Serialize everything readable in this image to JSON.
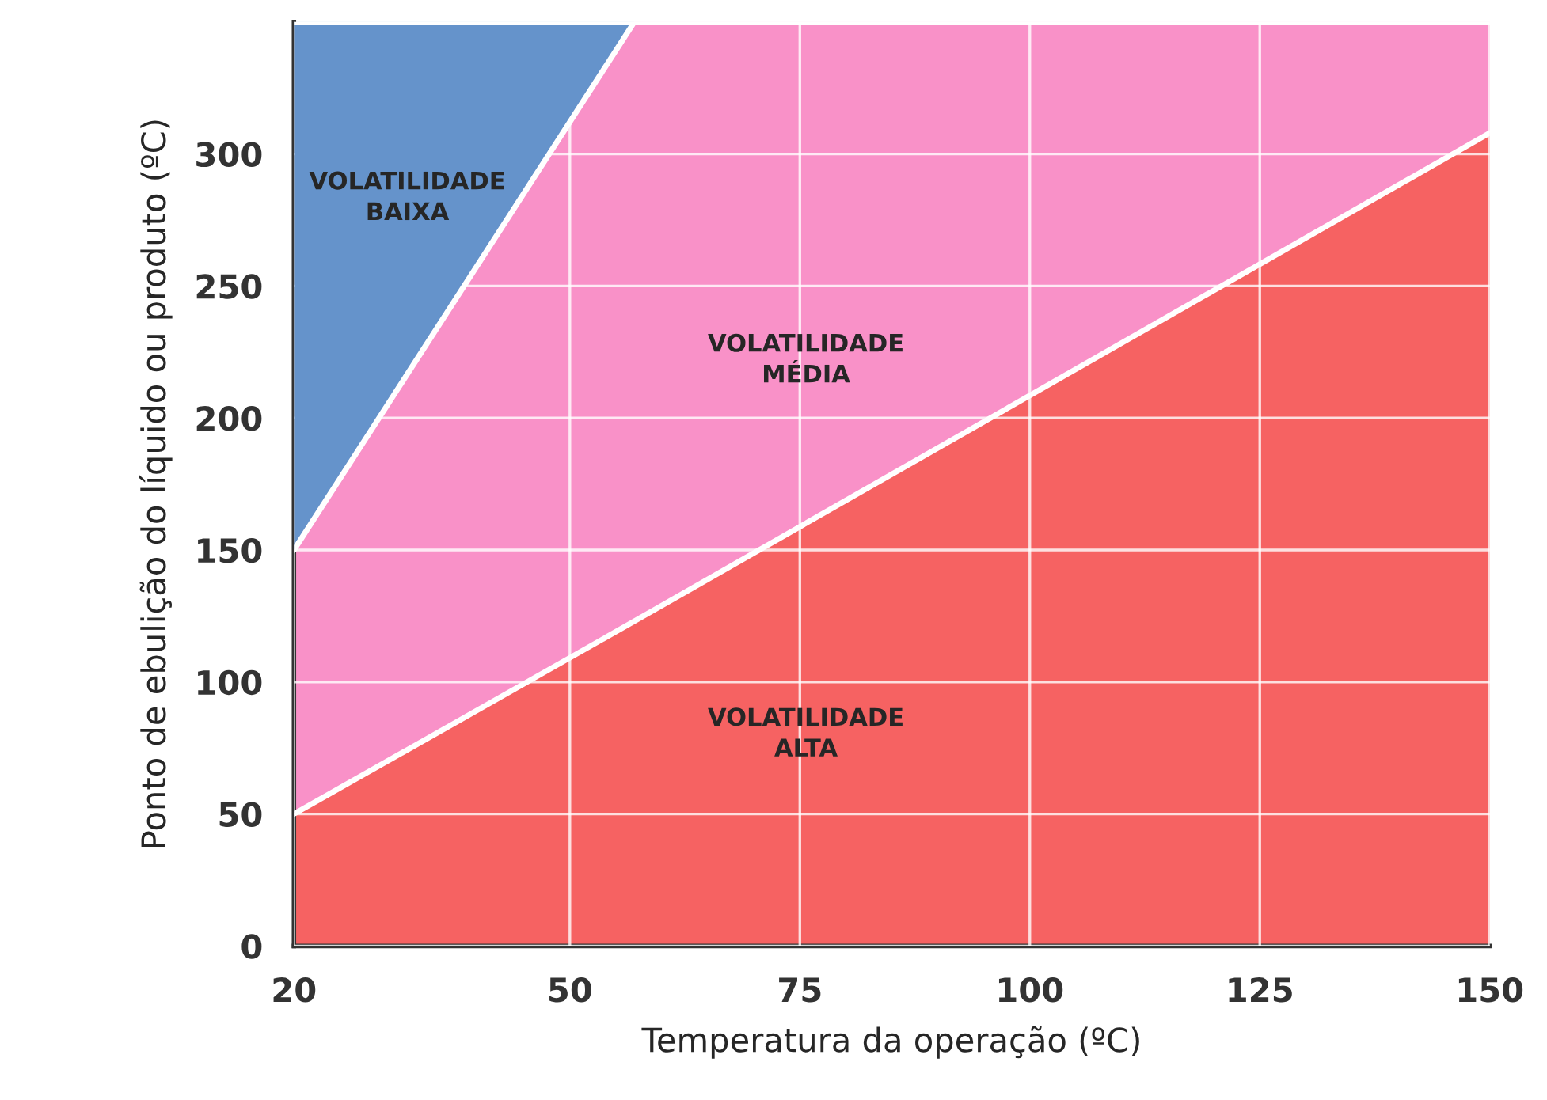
{
  "chart_data": {
    "type": "area",
    "stacked": true,
    "xlabel": "Temperatura da operação (ºC)",
    "ylabel": "Ponto de ebulição do líquido ou produto (ºC)",
    "x": [
      20,
      57,
      150
    ],
    "series": [
      {
        "name": "VOLATILIDADE\nALTA",
        "color": "#f66262",
        "values": [
          50,
          123,
          308
        ]
      },
      {
        "name": "VOLATILIDADE\nMÉDIA",
        "color": "#f991c8",
        "values": [
          100,
          227,
          42
        ]
      },
      {
        "name": "VOLATILIDADE\nBAIXA",
        "color": "#6593cb",
        "values": [
          200,
          0,
          0
        ]
      }
    ],
    "xlim": [
      20,
      150
    ],
    "ylim": [
      0,
      350
    ],
    "xticks": [
      20,
      50,
      75,
      100,
      125,
      150
    ],
    "yticks": [
      0,
      50,
      100,
      150,
      200,
      250,
      300
    ],
    "grid": true
  }
}
